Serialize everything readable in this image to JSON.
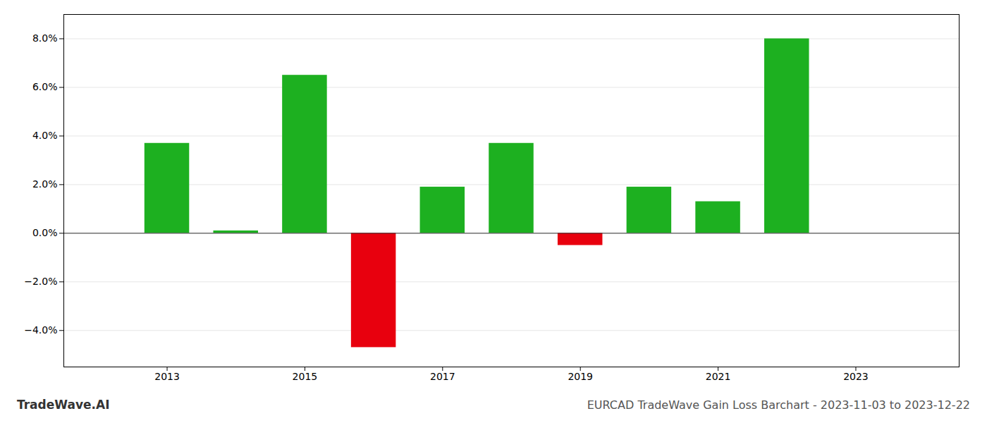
{
  "chart_data": {
    "type": "bar",
    "title": "EURCAD TradeWave Gain Loss Barchart - 2023-11-03 to 2023-12-22",
    "annotations": [
      "TradeWave.AI"
    ],
    "x": [
      2013,
      2014,
      2015,
      2016,
      2017,
      2018,
      2019,
      2020,
      2021,
      2022,
      2023
    ],
    "values": [
      0.037,
      0.001,
      0.065,
      -0.047,
      0.019,
      0.037,
      -0.005,
      0.019,
      0.013,
      0.08,
      null
    ],
    "colors": [
      "#1db020",
      "#1db020",
      "#1db020",
      "#e8000e",
      "#1db020",
      "#1db020",
      "#e8000e",
      "#1db020",
      "#1db020",
      "#1db020",
      null
    ],
    "xlim": [
      2011.5,
      2024.5
    ],
    "xticks": [
      2013,
      2015,
      2017,
      2019,
      2021,
      2023
    ],
    "ylim": [
      -0.055,
      0.09
    ],
    "yticks": [
      {
        "value": -0.04,
        "label": "−4.0%"
      },
      {
        "value": -0.02,
        "label": "−2.0%"
      },
      {
        "value": 0.0,
        "label": "0.0%"
      },
      {
        "value": 0.02,
        "label": "2.0%"
      },
      {
        "value": 0.04,
        "label": "4.0%"
      },
      {
        "value": 0.06,
        "label": "6.0%"
      },
      {
        "value": 0.08,
        "label": "8.0%"
      }
    ],
    "grid": true
  }
}
